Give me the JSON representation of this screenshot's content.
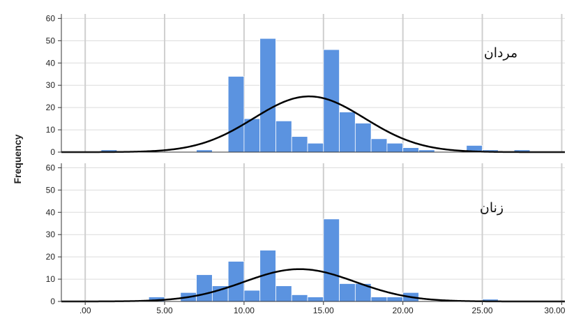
{
  "chart_data": {
    "type": "bar",
    "subtype": "histogram",
    "ylabel": "Frequency",
    "x_ticks": [
      ".00",
      "5.00",
      "10.00",
      "15.00",
      "20.00",
      "25.00",
      "30.00"
    ],
    "x_tick_values": [
      0,
      5,
      10,
      15,
      20,
      25,
      30
    ],
    "y_ticks": [
      "0",
      "10",
      "20",
      "30",
      "40",
      "50",
      "60"
    ],
    "xlim": [
      -1.5,
      30.2
    ],
    "ylim": [
      0,
      62
    ],
    "bin_width": 1,
    "grid": true,
    "bar_color": "#5b93e0",
    "curve_color": "#000000",
    "panels": [
      {
        "label": "مردان",
        "bins": [
          1.5,
          7.5,
          9.5,
          10.5,
          11.5,
          12.5,
          13.5,
          14.5,
          15.5,
          16.5,
          17.5,
          18.5,
          19.5,
          20.5,
          21.5,
          24.5,
          25.5,
          27.5
        ],
        "counts": [
          1,
          1,
          34,
          15,
          51,
          14,
          7,
          4,
          46,
          18,
          13,
          6,
          4,
          2,
          1,
          3,
          1,
          1
        ],
        "normal_curve": {
          "mean": 14.1,
          "sd": 3.5,
          "peak": 25
        }
      },
      {
        "label": "زنان",
        "bins": [
          4.5,
          6.5,
          7.5,
          8.5,
          9.5,
          10.5,
          11.5,
          12.5,
          13.5,
          14.5,
          15.5,
          16.5,
          17.5,
          18.5,
          19.5,
          20.5,
          25.5
        ],
        "counts": [
          2,
          4,
          12,
          7,
          18,
          5,
          23,
          7,
          3,
          2,
          37,
          8,
          8,
          2,
          2,
          4,
          1
        ],
        "normal_curve": {
          "mean": 13.5,
          "sd": 3.5,
          "peak": 14.5
        }
      }
    ]
  }
}
